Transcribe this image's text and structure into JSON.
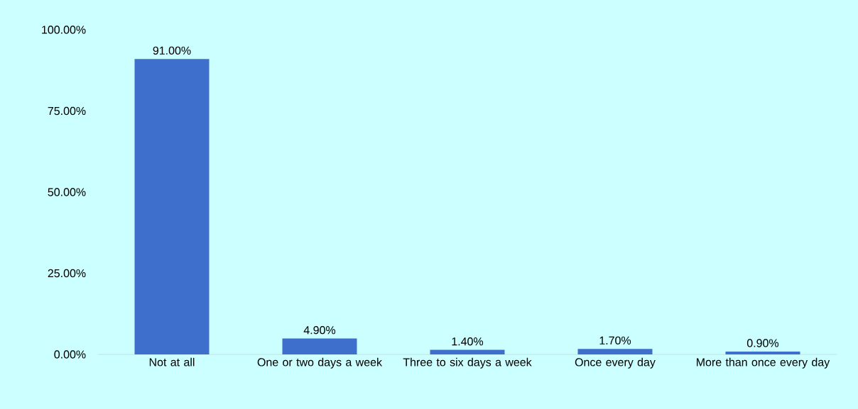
{
  "chart_data": {
    "type": "bar",
    "categories": [
      "Not at all",
      "One or two days a week",
      "Three to six days a week",
      "Once every day",
      "More than once every day"
    ],
    "values": [
      91,
      4.9,
      1.4,
      1.7,
      0.9
    ],
    "value_labels": [
      "91.00%",
      "4.90%",
      "1.40%",
      "1.70%",
      "0.90%"
    ],
    "color": "#3f6fcd",
    "ylim": [
      0,
      100
    ],
    "yticks": [
      {
        "value": 0,
        "label": "0.00%"
      },
      {
        "value": 25,
        "label": "25.00%"
      },
      {
        "value": 50,
        "label": "50.00%"
      },
      {
        "value": 75,
        "label": "75.00%"
      },
      {
        "value": 100,
        "label": "100.00%"
      }
    ],
    "grid": false
  }
}
